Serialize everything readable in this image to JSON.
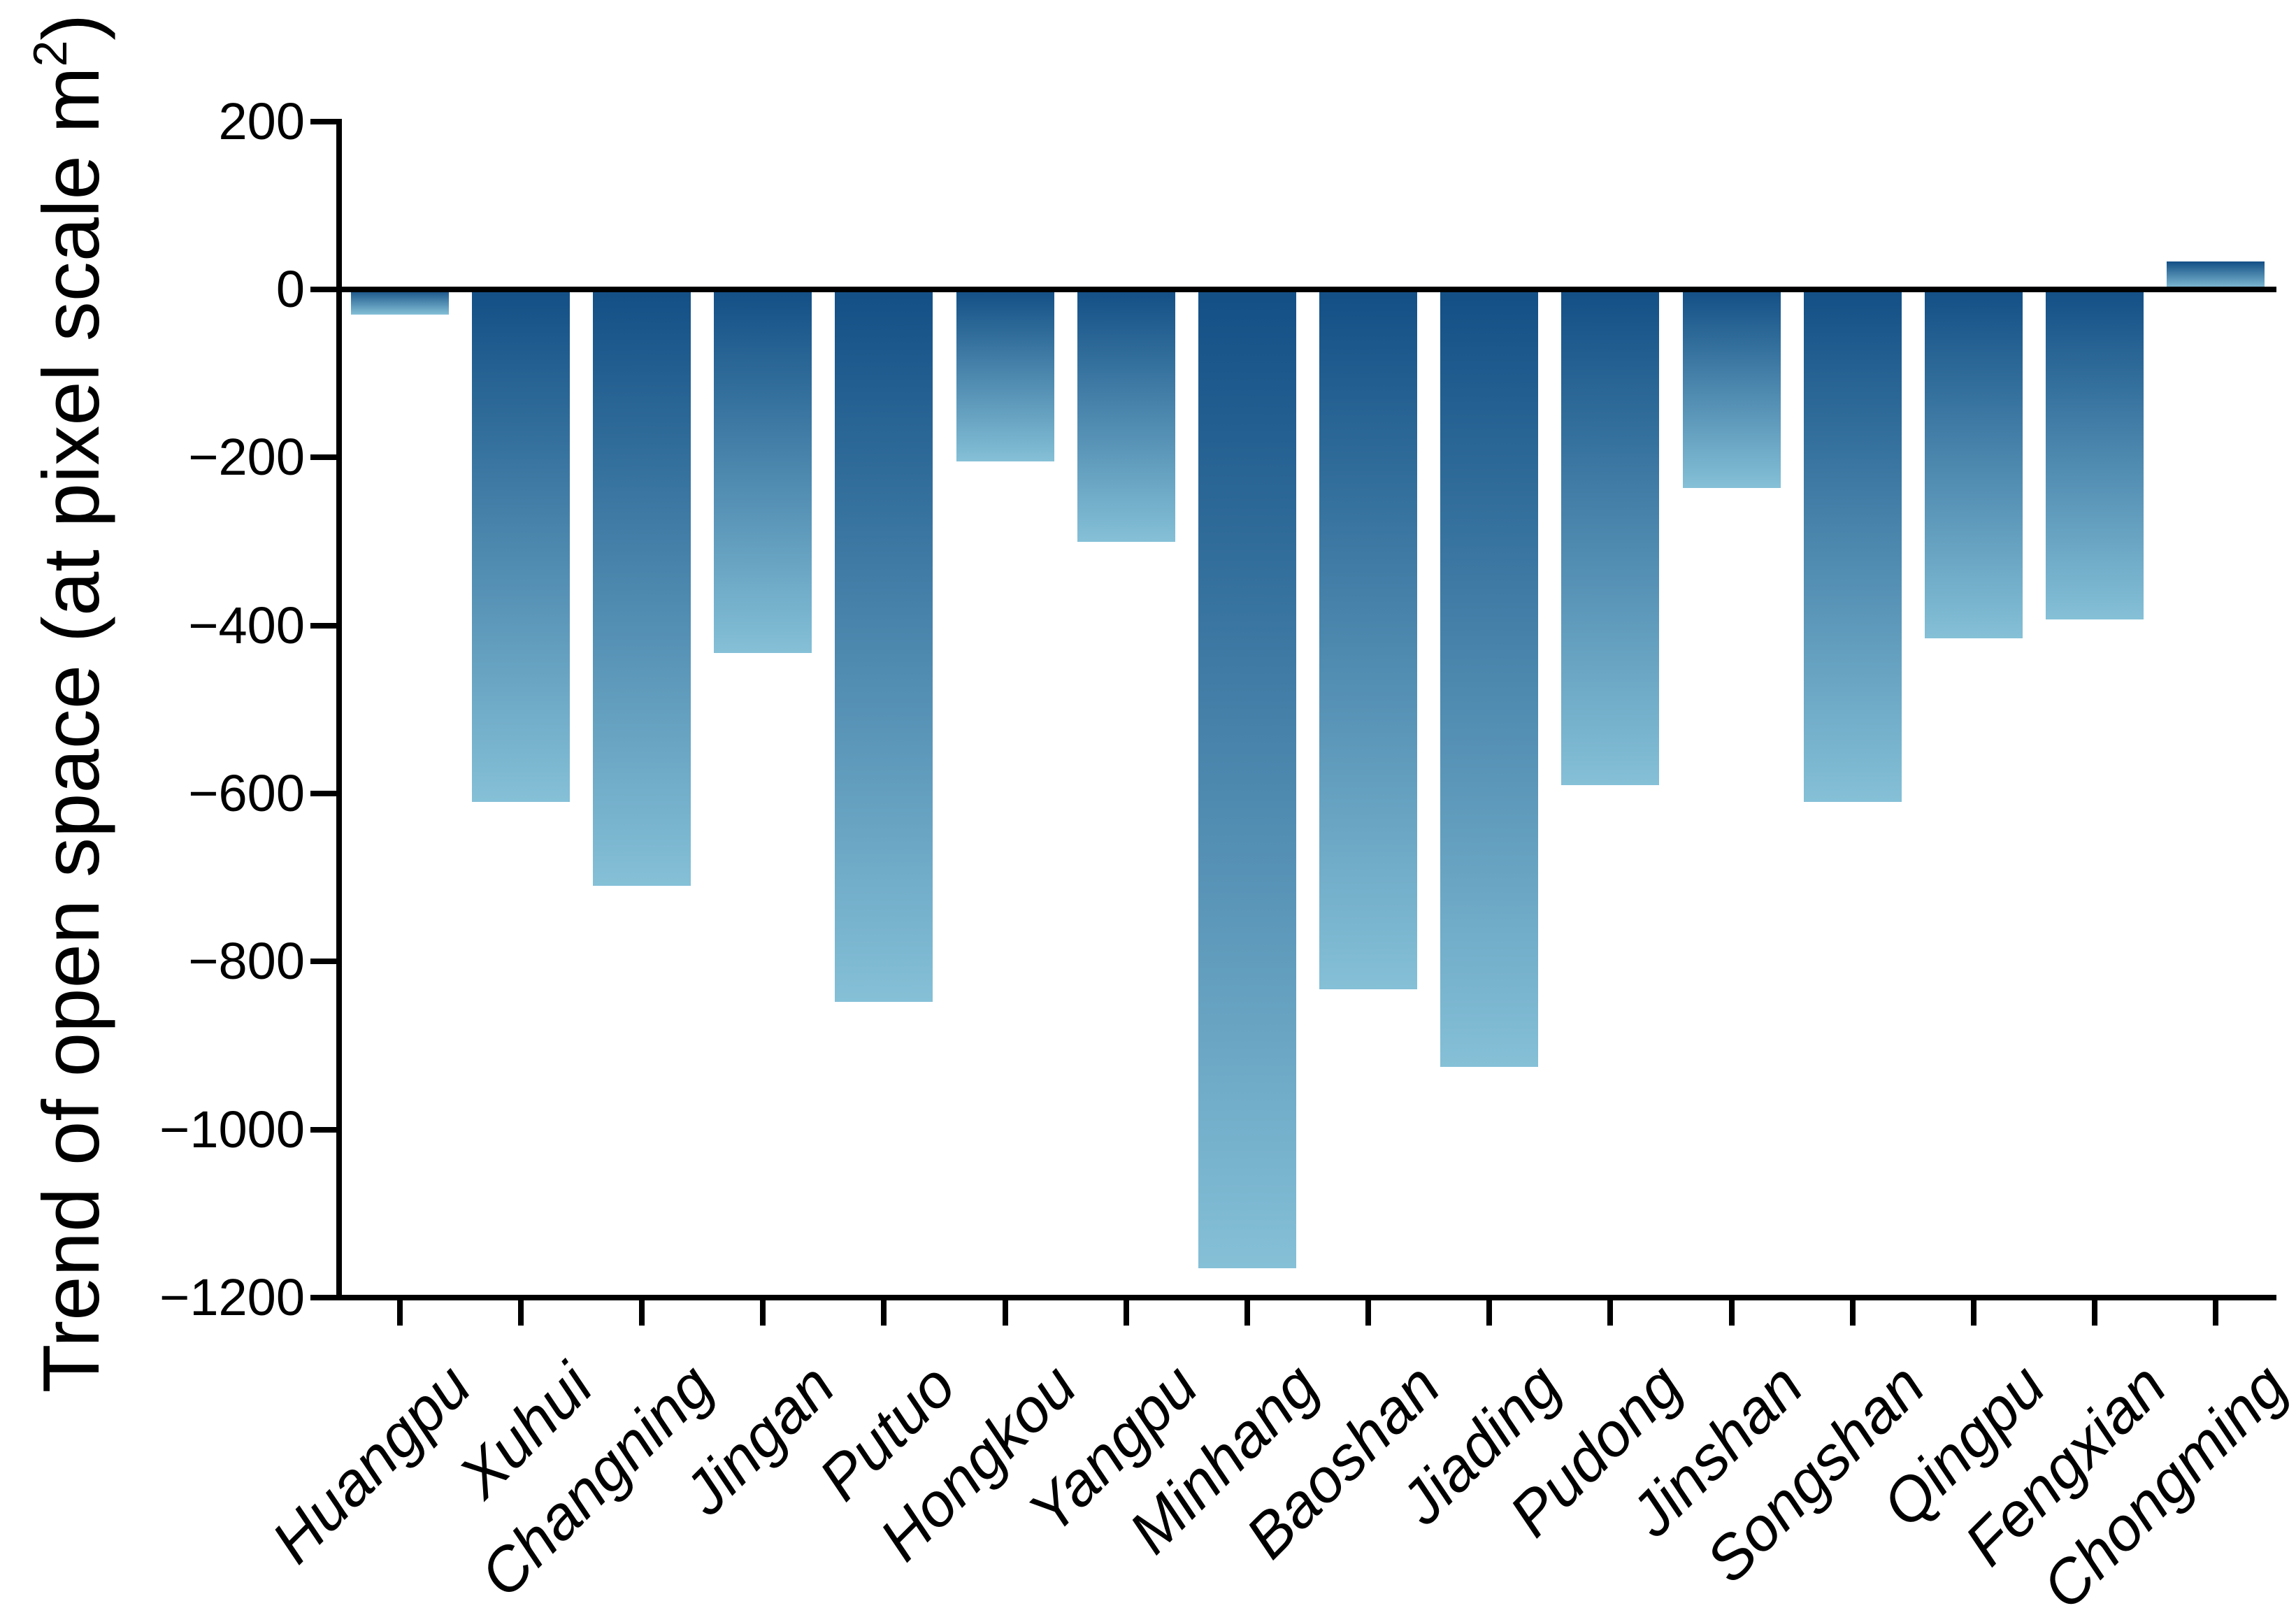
{
  "chart_data": {
    "type": "bar",
    "title": "",
    "ylabel": "Trend of open space (at pixel scale m²)",
    "ylabel_main": "Trend of open space (at pixel scale m",
    "ylabel_superscript": "2",
    "ylabel_suffix": ")",
    "xlabel": "",
    "categories": [
      "Huangpu",
      "Xuhui",
      "Changning",
      "Jingan",
      "Putuo",
      "Hongkou",
      "Yangpu",
      "Minhang",
      "Baoshan",
      "Jiading",
      "Pudong",
      "Jinshan",
      "Songshan",
      "Qingpu",
      "Fengxian",
      "Chongming"
    ],
    "values": [
      -30,
      -610,
      -710,
      -433,
      -848,
      -205,
      -300,
      -1165,
      -833,
      -925,
      -590,
      -236,
      -610,
      -415,
      -393,
      33
    ],
    "yticks": [
      200,
      0,
      -200,
      -400,
      -600,
      -800,
      -1000,
      -1200
    ],
    "ylim": [
      -1200,
      200
    ],
    "grid": false,
    "legend": false,
    "bar_gradient_top": "#134f85",
    "bar_gradient_bottom": "#85c0d7",
    "axis_color": "#000000",
    "background_color": "#ffffff"
  }
}
